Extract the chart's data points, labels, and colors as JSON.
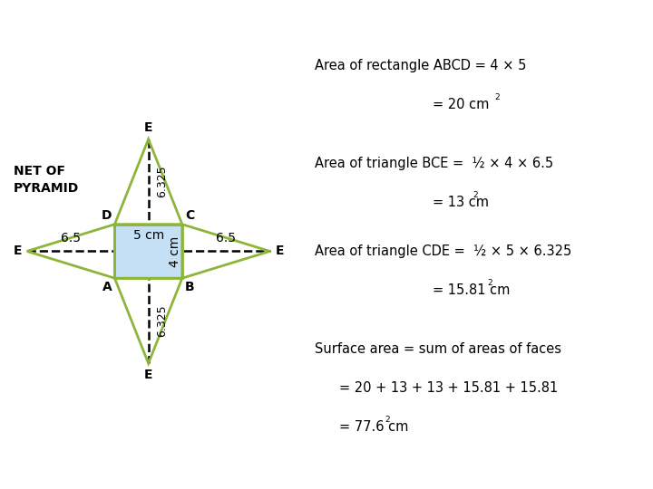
{
  "bg_color": "#ffffff",
  "line_color": "#8db53a",
  "rect_fill": "#c5e0f5",
  "dashed_color": "#000000",
  "text_color": "#000000",
  "label_A": "A",
  "label_B": "B",
  "label_C": "C",
  "label_D": "D",
  "label_E": "E",
  "label_5cm": "5 cm",
  "label_4cm": "4 cm",
  "label_6325_top": "6.325",
  "label_6325_bot": "6.325",
  "label_65_left": "6.5",
  "label_65_right": "6.5",
  "net_label1": "NET OF",
  "net_label2": "PYRAMID",
  "text1_line1": "Area of rectangle ABCD = 4 × 5",
  "text1_line2": "= 20 cm",
  "text1_sup": "2",
  "text2_line1": "Area of triangle BCE =  ½ × 4 × 6.5",
  "text2_line2": "= 13 cm",
  "text2_sup": "2",
  "text3_line1": "Area of triangle CDE =  ½ × 5 × 6.325",
  "text3_line2": "= 15.81 cm",
  "text3_sup": "2",
  "text4_line1": "Surface area = sum of areas of faces",
  "text4_line2": "= 20 + 13 + 13 + 15.81 + 15.81",
  "text4_line3": "= 77.6 cm",
  "text4_sup": "2",
  "diagram_font_size": 9,
  "text_font_size": 10.5
}
